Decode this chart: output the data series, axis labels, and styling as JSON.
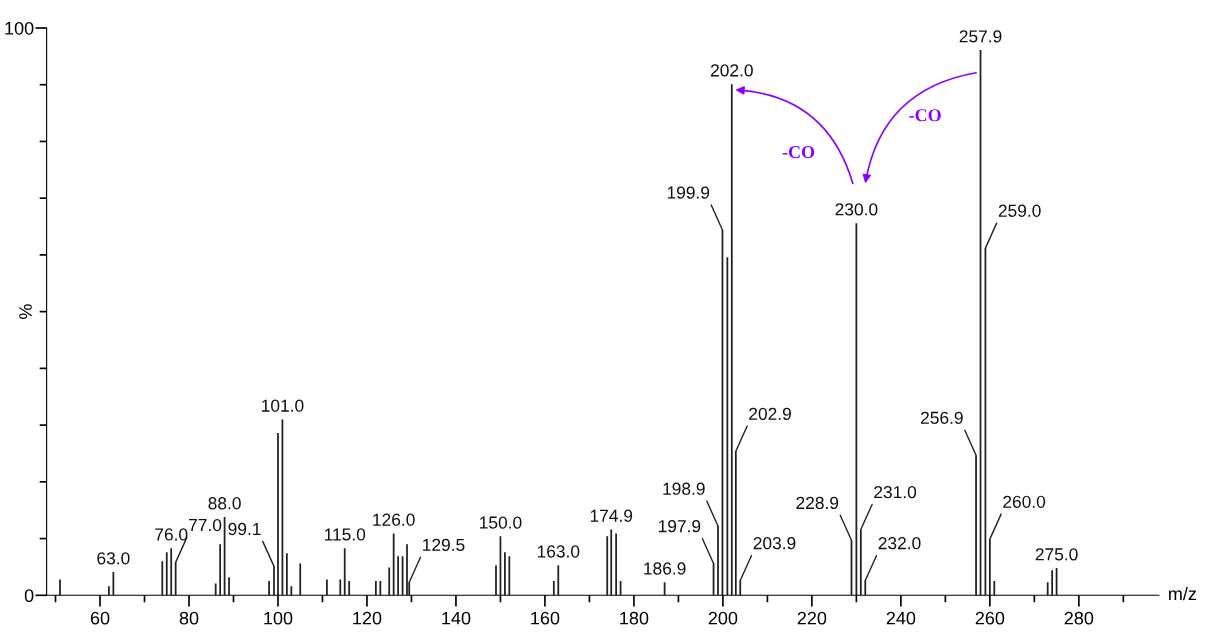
{
  "chart_data": {
    "type": "bar",
    "xlabel": "m/z",
    "ylabel": "%",
    "x": [
      51,
      62,
      63.0,
      74,
      75,
      76.0,
      77.0,
      86,
      87,
      88.0,
      89,
      98,
      99.1,
      100,
      101.0,
      102,
      103,
      105,
      111,
      114,
      115.0,
      116,
      122,
      123,
      125,
      126.0,
      127,
      128,
      129,
      129.5,
      149,
      150.0,
      151,
      152,
      162,
      163.0,
      174,
      174.9,
      176,
      177,
      186.9,
      197.9,
      198.9,
      199.9,
      201,
      202.0,
      202.9,
      203.9,
      228.9,
      230.0,
      231.0,
      232.0,
      256.9,
      257.9,
      259.0,
      260.0,
      261,
      273,
      274,
      275.0
    ],
    "series": [
      {
        "color": "#222222",
        "values": [
          2.8,
          1.6,
          4.1,
          6.0,
          7.6,
          8.3,
          5.8,
          2.1,
          9.0,
          13.8,
          3.2,
          2.5,
          5.1,
          28.6,
          31.0,
          7.4,
          1.6,
          5.6,
          2.8,
          2.8,
          8.3,
          2.5,
          2.5,
          2.5,
          4.9,
          10.9,
          6.9,
          6.9,
          9.0,
          2.3,
          5.3,
          10.4,
          7.6,
          6.9,
          2.5,
          5.3,
          10.4,
          11.6,
          10.9,
          2.5,
          2.3,
          5.6,
          12.2,
          64.4,
          59.6,
          90.1,
          25.4,
          2.6,
          9.7,
          65.6,
          11.6,
          2.6,
          24.7,
          96.1,
          61.2,
          9.9,
          2.5,
          2.3,
          4.4,
          4.8
        ]
      }
    ],
    "xlim": [
      48,
      298
    ],
    "xticks": [
      {
        "value": 50,
        "label": null
      },
      60,
      {
        "value": 70,
        "label": null
      },
      80,
      {
        "value": 90,
        "label": null
      },
      100,
      {
        "value": 110,
        "label": null
      },
      120,
      {
        "value": 130,
        "label": null
      },
      140,
      {
        "value": 150,
        "label": null
      },
      160,
      {
        "value": 170,
        "label": null
      },
      180,
      {
        "value": 190,
        "label": null
      },
      200,
      {
        "value": 210,
        "label": null
      },
      220,
      {
        "value": 230,
        "label": null
      },
      240,
      {
        "value": 250,
        "label": null
      },
      260,
      {
        "value": 270,
        "label": null
      },
      280,
      {
        "value": 290,
        "label": null
      }
    ],
    "ylim": [
      0,
      100
    ],
    "yticks": [
      0,
      {
        "value": 10,
        "label": null
      },
      {
        "value": 20,
        "label": null
      },
      {
        "value": 30,
        "label": null
      },
      {
        "value": 40,
        "label": null
      },
      {
        "value": 50,
        "label": null
      },
      {
        "value": 60,
        "label": null
      },
      {
        "value": 70,
        "label": null
      },
      {
        "value": 80,
        "label": null
      },
      {
        "value": 90,
        "label": null
      },
      100
    ],
    "annotations": [
      {
        "text": "63.0",
        "x": 63.0,
        "y": 4.1
      },
      {
        "text": "76.0",
        "x": 76.0,
        "y": 8.3
      },
      {
        "text": "77.0",
        "x": 77.0,
        "y": 5.8
      },
      {
        "text": "88.0",
        "x": 88.0,
        "y": 13.8
      },
      {
        "text": "99.1",
        "x": 99.1,
        "y": 5.1
      },
      {
        "text": "101.0",
        "x": 101.0,
        "y": 31.0
      },
      {
        "text": "115.0",
        "x": 115.0,
        "y": 8.3
      },
      {
        "text": "126.0",
        "x": 126.0,
        "y": 10.9
      },
      {
        "text": "129.5",
        "x": 129.5,
        "y": 2.3
      },
      {
        "text": "150.0",
        "x": 150.0,
        "y": 10.4
      },
      {
        "text": "163.0",
        "x": 163.0,
        "y": 5.3
      },
      {
        "text": "174.9",
        "x": 174.9,
        "y": 11.6
      },
      {
        "text": "186.9",
        "x": 186.9,
        "y": 2.3
      },
      {
        "text": "197.9",
        "x": 197.9,
        "y": 5.6
      },
      {
        "text": "198.9",
        "x": 198.9,
        "y": 12.2
      },
      {
        "text": "199.9",
        "x": 199.9,
        "y": 64.4
      },
      {
        "text": "202.0",
        "x": 202.0,
        "y": 90.1
      },
      {
        "text": "202.9",
        "x": 202.9,
        "y": 25.4
      },
      {
        "text": "203.9",
        "x": 203.9,
        "y": 2.6
      },
      {
        "text": "228.9",
        "x": 228.9,
        "y": 9.7
      },
      {
        "text": "230.0",
        "x": 230.0,
        "y": 65.6
      },
      {
        "text": "231.0",
        "x": 231.0,
        "y": 11.6
      },
      {
        "text": "232.0",
        "x": 232.0,
        "y": 2.6
      },
      {
        "text": "256.9",
        "x": 256.9,
        "y": 24.7
      },
      {
        "text": "257.9",
        "x": 257.9,
        "y": 96.1
      },
      {
        "text": "259.0",
        "x": 259.0,
        "y": 61.2
      },
      {
        "text": "260.0",
        "x": 260.0,
        "y": 9.9
      },
      {
        "text": "275.0",
        "x": 275.0,
        "y": 4.8
      },
      "-CO",
      "-CO"
    ],
    "grid": false,
    "legend": false
  }
}
